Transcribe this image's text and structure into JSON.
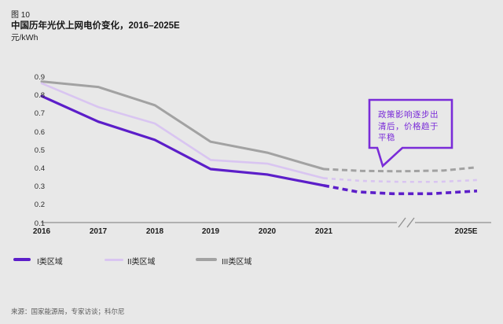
{
  "header": {
    "figure_label": "图 10"
  },
  "chart_data": {
    "type": "line",
    "title": "中国历年光伏上网电价变化，2016–2025E",
    "ylabel": "元/kWh",
    "xlabel": "",
    "x_labels": [
      "2016",
      "2017",
      "2018",
      "2019",
      "2020",
      "2021",
      "2025E"
    ],
    "x_axis_break": "between 2021 and 2025E",
    "ylim": [
      0.1,
      0.9
    ],
    "yticks": [
      "0.9",
      "0.8",
      "0.7",
      "0.6",
      "0.5",
      "0.4",
      "0.3",
      "0.2",
      "0.1"
    ],
    "grid": false,
    "legend_position": "bottom-left",
    "series": [
      {
        "name": "I类区域",
        "color": "#5c1ec9",
        "historical_x": [
          "2016",
          "2017",
          "2018",
          "2019",
          "2020",
          "2021"
        ],
        "historical_values": [
          0.8,
          0.66,
          0.56,
          0.4,
          0.37,
          0.31
        ],
        "forecast_x_frac": [
          0,
          0.22,
          0.45,
          0.7,
          1
        ],
        "forecast_values": [
          0.31,
          0.275,
          0.265,
          0.265,
          0.28
        ],
        "line_width": 3.2,
        "dash": "7 5",
        "dash_width": 3.6
      },
      {
        "name": "II类区域",
        "color": "#d9c5f1",
        "historical_x": [
          "2016",
          "2017",
          "2018",
          "2019",
          "2020",
          "2021"
        ],
        "historical_values": [
          0.87,
          0.74,
          0.65,
          0.45,
          0.43,
          0.35
        ],
        "forecast_x_frac": [
          0,
          0.25,
          0.5,
          0.75,
          1
        ],
        "forecast_values": [
          0.35,
          0.335,
          0.33,
          0.33,
          0.34
        ],
        "line_width": 2.6,
        "dash": "5 5",
        "dash_width": 2.6
      },
      {
        "name": "III类区域",
        "color": "#a2a2a2",
        "historical_x": [
          "2016",
          "2017",
          "2018",
          "2019",
          "2020",
          "2021"
        ],
        "historical_values": [
          0.88,
          0.85,
          0.75,
          0.55,
          0.49,
          0.4
        ],
        "forecast_x_frac": [
          0,
          0.25,
          0.5,
          0.78,
          1
        ],
        "forecast_values": [
          0.4,
          0.39,
          0.388,
          0.392,
          0.41
        ],
        "line_width": 3,
        "dash": "7 4.5",
        "dash_width": 3
      }
    ],
    "annotation": {
      "text": "政策影响逐步出清后，价格趋于平稳",
      "lines": [
        "政策影响逐步出",
        "清后，价格趋于",
        "平稳"
      ],
      "color": "#7a2cd8"
    }
  },
  "source": "来源：国家能源局，专家访谈；科尔尼"
}
